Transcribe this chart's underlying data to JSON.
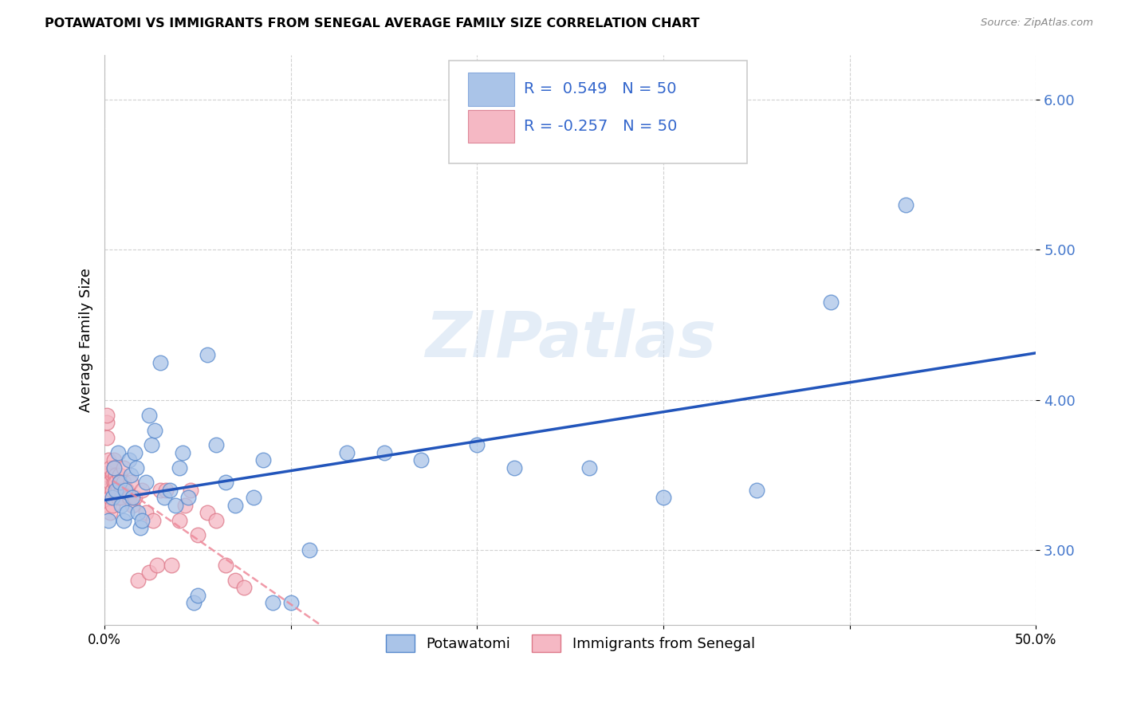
{
  "title": "POTAWATOMI VS IMMIGRANTS FROM SENEGAL AVERAGE FAMILY SIZE CORRELATION CHART",
  "source": "Source: ZipAtlas.com",
  "ylabel": "Average Family Size",
  "xmin": 0.0,
  "xmax": 0.5,
  "ymin": 2.5,
  "ymax": 6.3,
  "yticks": [
    3.0,
    4.0,
    5.0,
    6.0
  ],
  "xticks": [
    0.0,
    0.1,
    0.2,
    0.3,
    0.4,
    0.5
  ],
  "xtick_labels": [
    "0.0%",
    "",
    "",
    "",
    "",
    "50.0%"
  ],
  "watermark": "ZIPatlas",
  "legend_label1": "Potawatomi",
  "legend_label2": "Immigrants from Senegal",
  "R1": 0.549,
  "N1": 50,
  "R2": -0.257,
  "N2": 50,
  "blue_color": "#aac4e8",
  "pink_color": "#f5b8c4",
  "blue_line_color": "#2255bb",
  "pink_line_color": "#ee8899",
  "blue_scatter_x": [
    0.002,
    0.004,
    0.005,
    0.006,
    0.007,
    0.008,
    0.009,
    0.01,
    0.011,
    0.012,
    0.013,
    0.014,
    0.015,
    0.016,
    0.017,
    0.018,
    0.019,
    0.02,
    0.022,
    0.024,
    0.025,
    0.027,
    0.03,
    0.032,
    0.035,
    0.038,
    0.04,
    0.042,
    0.045,
    0.048,
    0.05,
    0.055,
    0.06,
    0.065,
    0.07,
    0.08,
    0.085,
    0.09,
    0.1,
    0.11,
    0.13,
    0.15,
    0.17,
    0.2,
    0.22,
    0.26,
    0.3,
    0.35,
    0.39,
    0.43
  ],
  "blue_scatter_y": [
    3.2,
    3.35,
    3.55,
    3.4,
    3.65,
    3.45,
    3.3,
    3.2,
    3.4,
    3.25,
    3.6,
    3.5,
    3.35,
    3.65,
    3.55,
    3.25,
    3.15,
    3.2,
    3.45,
    3.9,
    3.7,
    3.8,
    4.25,
    3.35,
    3.4,
    3.3,
    3.55,
    3.65,
    3.35,
    2.65,
    2.7,
    4.3,
    3.7,
    3.45,
    3.3,
    3.35,
    3.6,
    2.65,
    2.65,
    3.0,
    3.65,
    3.65,
    3.6,
    3.7,
    3.55,
    3.55,
    3.35,
    3.4,
    4.65,
    5.3
  ],
  "pink_scatter_x": [
    0.001,
    0.001,
    0.001,
    0.002,
    0.002,
    0.002,
    0.002,
    0.003,
    0.003,
    0.003,
    0.003,
    0.004,
    0.004,
    0.004,
    0.005,
    0.005,
    0.005,
    0.006,
    0.006,
    0.007,
    0.007,
    0.008,
    0.008,
    0.009,
    0.009,
    0.01,
    0.01,
    0.012,
    0.013,
    0.014,
    0.015,
    0.016,
    0.018,
    0.02,
    0.022,
    0.024,
    0.026,
    0.028,
    0.03,
    0.033,
    0.036,
    0.04,
    0.043,
    0.046,
    0.05,
    0.055,
    0.06,
    0.065,
    0.07,
    0.075
  ],
  "pink_scatter_y": [
    3.85,
    3.9,
    3.75,
    3.6,
    3.5,
    3.4,
    3.3,
    3.55,
    3.45,
    3.35,
    3.25,
    3.5,
    3.4,
    3.3,
    3.6,
    3.55,
    3.45,
    3.5,
    3.45,
    3.4,
    3.35,
    3.5,
    3.45,
    3.4,
    3.35,
    3.55,
    3.45,
    3.4,
    3.35,
    3.45,
    3.3,
    3.35,
    2.8,
    3.4,
    3.25,
    2.85,
    3.2,
    2.9,
    3.4,
    3.4,
    2.9,
    3.2,
    3.3,
    3.4,
    3.1,
    3.25,
    3.2,
    2.9,
    2.8,
    2.75
  ]
}
